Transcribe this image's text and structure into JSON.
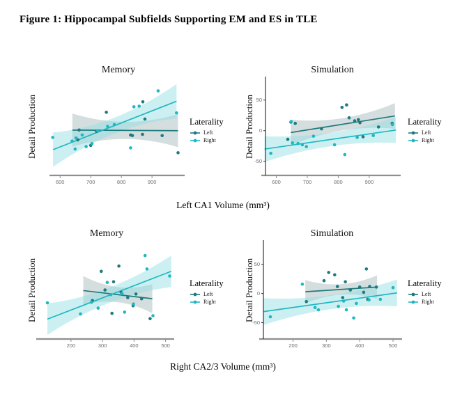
{
  "figure_title": "Figure 1: Hippocampal Subfields Supporting EM and ES in TLE",
  "legend": {
    "title": "Laterality",
    "items": [
      {
        "label": "Left",
        "color": "#1e7a7d"
      },
      {
        "label": "Right",
        "color": "#1fb7c2"
      }
    ]
  },
  "colors": {
    "left": "#1e7a7d",
    "right": "#1fb7c2",
    "left_band": "#9fb6b8",
    "right_band": "#8fdde2",
    "band_opacity": 0.45,
    "x_axis": "#8e8e8e",
    "y_axis": "#333333",
    "tick_text": "#6e6e6e",
    "text": "#111111"
  },
  "chart_data": {
    "type": "scatter",
    "grid": false,
    "legend_position": "right",
    "rows": [
      {
        "xlabel": "Left CA1 Volume (mm³)",
        "panels": [
          {
            "title": "Memory",
            "ylabel": "Detail Production",
            "xlim": [
              579,
              1002
            ],
            "ylim": [
              -73,
              86
            ],
            "xticks": [
              600,
              700,
              800,
              900
            ],
            "yticks": [],
            "series": [
              {
                "name": "Left",
                "points": [
                  [
                    658,
                    -15
                  ],
                  [
                    662,
                    1
                  ],
                  [
                    700,
                    -24
                  ],
                  [
                    719,
                    -1
                  ],
                  [
                    751,
                    30
                  ],
                  [
                    830,
                    -7
                  ],
                  [
                    836,
                    -8
                  ],
                  [
                    869,
                    -6
                  ],
                  [
                    870,
                    47
                  ],
                  [
                    877,
                    19
                  ],
                  [
                    933,
                    -8
                  ],
                  [
                    985,
                    -36
                  ]
                ],
                "trend": {
                  "x1": 640,
                  "y1": 1,
                  "x2": 985,
                  "y2": 0
                },
                "band": {
                  "end_width": 27,
                  "mid_width": 14
                }
              },
              {
                "name": "Right",
                "points": [
                  [
                    576,
                    -11
                  ],
                  [
                    639,
                    -17
                  ],
                  [
                    649,
                    -30
                  ],
                  [
                    652,
                    -12
                  ],
                  [
                    672,
                    -7
                  ],
                  [
                    685,
                    -26
                  ],
                  [
                    704,
                    -21
                  ],
                  [
                    723,
                    0
                  ],
                  [
                    755,
                    7
                  ],
                  [
                    777,
                    10
                  ],
                  [
                    830,
                    -28
                  ],
                  [
                    841,
                    39
                  ],
                  [
                    858,
                    40
                  ],
                  [
                    920,
                    65
                  ],
                  [
                    980,
                    29
                  ]
                ],
                "trend": {
                  "x1": 577,
                  "y1": -31,
                  "x2": 980,
                  "y2": 48
                },
                "band": {
                  "end_width": 28,
                  "mid_width": 13
                }
              }
            ]
          },
          {
            "title": "Simulation",
            "ylabel": "Detail Production",
            "xlim": [
              565,
              997
            ],
            "ylim": [
              -73,
              86
            ],
            "xticks": [
              600,
              700,
              800,
              900
            ],
            "yticks": [
              50,
              0,
              -50
            ],
            "series": [
              {
                "name": "Left",
                "points": [
                  [
                    637,
                    -14
                  ],
                  [
                    647,
                    14
                  ],
                  [
                    661,
                    12
                  ],
                  [
                    746,
                    3
                  ],
                  [
                    812,
                    38
                  ],
                  [
                    827,
                    42
                  ],
                  [
                    835,
                    21
                  ],
                  [
                    853,
                    16
                  ],
                  [
                    865,
                    18
                  ],
                  [
                    870,
                    13
                  ],
                  [
                    880,
                    -10
                  ],
                  [
                    930,
                    6
                  ],
                  [
                    974,
                    12
                  ]
                ],
                "trend": {
                  "x1": 647,
                  "y1": -3,
                  "x2": 983,
                  "y2": 24
                },
                "band": {
                  "end_width": 21,
                  "mid_width": 10
                }
              },
              {
                "name": "Right",
                "points": [
                  [
                    582,
                    -37
                  ],
                  [
                    648,
                    15
                  ],
                  [
                    652,
                    -20
                  ],
                  [
                    670,
                    -21
                  ],
                  [
                    684,
                    -23
                  ],
                  [
                    697,
                    -26
                  ],
                  [
                    720,
                    -9
                  ],
                  [
                    788,
                    -23
                  ],
                  [
                    821,
                    -39
                  ],
                  [
                    861,
                    -11
                  ],
                  [
                    913,
                    -8
                  ],
                  [
                    975,
                    10
                  ]
                ],
                "trend": {
                  "x1": 562,
                  "y1": -30,
                  "x2": 986,
                  "y2": 1
                },
                "band": {
                  "end_width": 21,
                  "mid_width": 11
                }
              }
            ]
          }
        ]
      },
      {
        "xlabel": "Right CA2/3 Volume (mm³)",
        "panels": [
          {
            "title": "Memory",
            "ylabel": "Detail Production",
            "xlim": [
              103,
              523
            ],
            "ylim": [
              -78,
              89
            ],
            "xticks": [
              200,
              300,
              400,
              500
            ],
            "yticks": [],
            "series": [
              {
                "name": "Left",
                "points": [
                  [
                    268,
                    -12
                  ],
                  [
                    296,
                    38
                  ],
                  [
                    308,
                    6
                  ],
                  [
                    330,
                    -34
                  ],
                  [
                    335,
                    20
                  ],
                  [
                    352,
                    47
                  ],
                  [
                    359,
                    2
                  ],
                  [
                    380,
                    -7
                  ],
                  [
                    397,
                    -21
                  ],
                  [
                    406,
                    -1
                  ],
                  [
                    424,
                    -9
                  ],
                  [
                    451,
                    -43
                  ]
                ],
                "trend": {
                  "x1": 239,
                  "y1": 5,
                  "x2": 458,
                  "y2": -9
                },
                "band": {
                  "end_width": 25,
                  "mid_width": 13
                }
              },
              {
                "name": "Right",
                "points": [
                  [
                    125,
                    -16
                  ],
                  [
                    230,
                    -35
                  ],
                  [
                    265,
                    -15
                  ],
                  [
                    286,
                    -25
                  ],
                  [
                    315,
                    19
                  ],
                  [
                    326,
                    -2
                  ],
                  [
                    362,
                    0
                  ],
                  [
                    370,
                    -32
                  ],
                  [
                    398,
                    -18
                  ],
                  [
                    435,
                    65
                  ],
                  [
                    441,
                    42
                  ],
                  [
                    460,
                    -38
                  ],
                  [
                    513,
                    30
                  ]
                ],
                "trend": {
                  "x1": 125,
                  "y1": -44,
                  "x2": 518,
                  "y2": 38
                },
                "band": {
                  "end_width": 27,
                  "mid_width": 13
                }
              }
            ]
          },
          {
            "title": "Simulation",
            "ylabel": "Detail Production",
            "xlim": [
              111,
              523
            ],
            "ylim": [
              -78,
              89
            ],
            "xticks": [
              200,
              300,
              400,
              500
            ],
            "yticks": [
              50,
              0,
              -50
            ],
            "series": [
              {
                "name": "Left",
                "points": [
                  [
                    240,
                    -14
                  ],
                  [
                    293,
                    22
                  ],
                  [
                    307,
                    36
                  ],
                  [
                    325,
                    32
                  ],
                  [
                    333,
                    12
                  ],
                  [
                    349,
                    -7
                  ],
                  [
                    357,
                    20
                  ],
                  [
                    372,
                    6
                  ],
                  [
                    400,
                    11
                  ],
                  [
                    412,
                    2
                  ],
                  [
                    420,
                    42
                  ],
                  [
                    424,
                    -10
                  ],
                  [
                    430,
                    12
                  ],
                  [
                    450,
                    11
                  ]
                ],
                "trend": {
                  "x1": 237,
                  "y1": 3,
                  "x2": 452,
                  "y2": 11
                },
                "band": {
                  "end_width": 20,
                  "mid_width": 9
                }
              },
              {
                "name": "Right",
                "points": [
                  [
                    132,
                    -40
                  ],
                  [
                    228,
                    16
                  ],
                  [
                    266,
                    -24
                  ],
                  [
                    276,
                    -28
                  ],
                  [
                    336,
                    -22
                  ],
                  [
                    352,
                    -13
                  ],
                  [
                    360,
                    -28
                  ],
                  [
                    382,
                    -42
                  ],
                  [
                    390,
                    -17
                  ],
                  [
                    428,
                    -11
                  ],
                  [
                    462,
                    -10
                  ],
                  [
                    500,
                    10
                  ]
                ],
                "trend": {
                  "x1": 112,
                  "y1": -31,
                  "x2": 512,
                  "y2": 1
                },
                "band": {
                  "end_width": 23,
                  "mid_width": 12
                }
              }
            ]
          }
        ]
      }
    ]
  }
}
